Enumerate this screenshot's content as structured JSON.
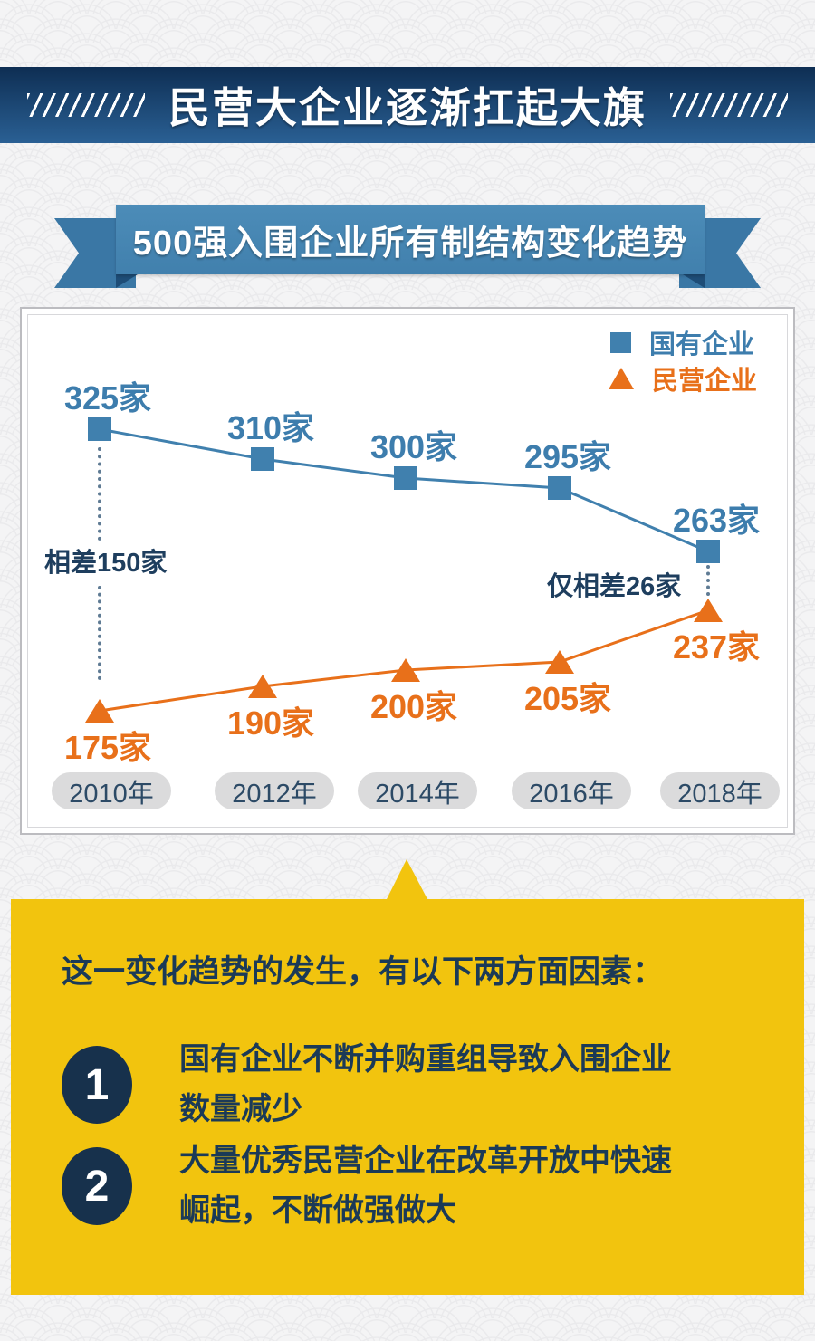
{
  "page": {
    "header": {
      "title": "民营大企业逐渐扛起大旗"
    },
    "ribbon": {
      "title": "500强入围企业所有制结构变化趋势"
    }
  },
  "chart_data": {
    "type": "line",
    "categories": [
      "2010年",
      "2012年",
      "2014年",
      "2016年",
      "2018年"
    ],
    "series": [
      {
        "name": "国有企业",
        "marker": "square",
        "color": "#4080ae",
        "values": [
          325,
          310,
          300,
          295,
          263
        ],
        "labels": [
          "325家",
          "310家",
          "300家",
          "295家",
          "263家"
        ]
      },
      {
        "name": "民营企业",
        "marker": "triangle",
        "color": "#e8701a",
        "values": [
          175,
          190,
          200,
          205,
          237
        ],
        "labels": [
          "175家",
          "190家",
          "200家",
          "205家",
          "237家"
        ]
      }
    ],
    "annotations": [
      {
        "text": "相差150家",
        "refers_to": "2010年"
      },
      {
        "text": "仅相差26家",
        "refers_to": "2018年"
      }
    ],
    "legend_position": "top-right",
    "grid": false,
    "xlabel": "",
    "ylabel": ""
  },
  "factors": {
    "heading": "这一变化趋势的发生，有以下两方面因素：",
    "items": [
      {
        "number": "1",
        "lines": [
          "国有企业不断并购重组导致入围企业",
          "数量减少"
        ]
      },
      {
        "number": "2",
        "lines": [
          "大量优秀民营企业在改革开放中快速",
          "崛起，不断做强做大"
        ]
      }
    ]
  },
  "colors": {
    "state_owned_blue": "#4080ae",
    "private_orange": "#e8701a",
    "navy_text": "#1b3a57",
    "factors_yellow": "#f2c40e",
    "header_gradient_top": "#0e2e53",
    "header_gradient_bottom": "#2a6094",
    "ribbon_blue": "#4585b2"
  }
}
